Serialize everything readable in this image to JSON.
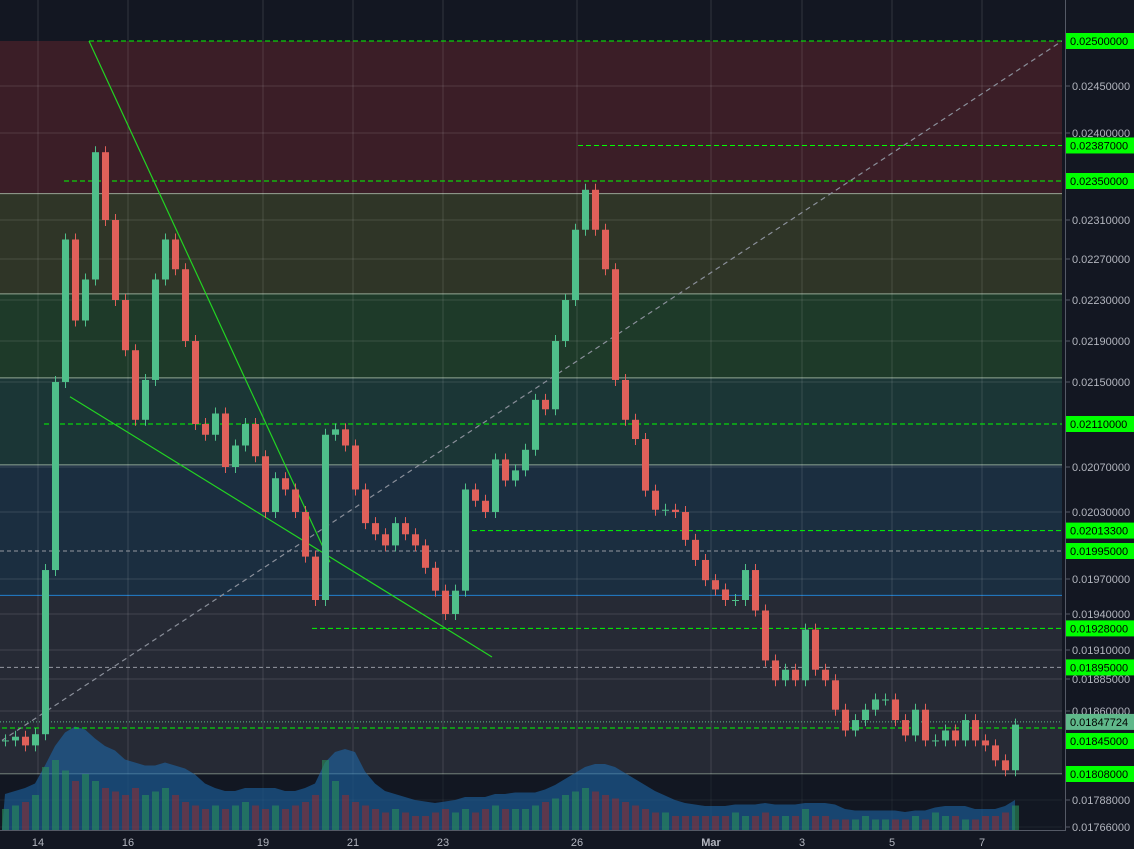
{
  "chart_data": {
    "type": "candlestick",
    "title": "",
    "x_ticks": [
      "14",
      "16",
      "19",
      "21",
      "23",
      "26",
      "Mar",
      "3",
      "5",
      "7"
    ],
    "y_ticks": [
      "0.02450000",
      "0.02400000",
      "0.02310000",
      "0.02270000",
      "0.02230000",
      "0.02190000",
      "0.02150000",
      "0.02070000",
      "0.02030000",
      "0.01970000",
      "0.01940000",
      "0.01910000",
      "0.01885000",
      "0.01860000",
      "0.01788000",
      "0.01766000"
    ],
    "y_tick_values": [
      0.0245,
      0.024,
      0.0231,
      0.0227,
      0.0223,
      0.0219,
      0.0215,
      0.0207,
      0.0203,
      0.0197,
      0.0194,
      0.0191,
      0.01885,
      0.0186,
      0.01788,
      0.01766
    ],
    "price_tags": [
      {
        "label": "0.02500000",
        "value": 0.025
      },
      {
        "label": "0.02387000",
        "value": 0.02387
      },
      {
        "label": "0.02350000",
        "value": 0.0235
      },
      {
        "label": "0.02110000",
        "value": 0.0211
      },
      {
        "label": "0.02013300",
        "value": 0.020133
      },
      {
        "label": "0.01995000",
        "value": 0.01995
      },
      {
        "label": "0.01928000",
        "value": 0.01928
      },
      {
        "label": "0.01895000",
        "value": 0.01895
      },
      {
        "label": "0.01845000",
        "value": 0.01845
      },
      {
        "label": "0.01808000",
        "value": 0.01808
      }
    ],
    "last_price": {
      "label": "0.01847724",
      "value": 0.01847724
    },
    "closes": [
      0.01835,
      0.01838,
      0.01831,
      0.0184,
      0.01978,
      0.0215,
      0.0229,
      0.0221,
      0.0225,
      0.0238,
      0.0231,
      0.0223,
      0.02181,
      0.02114,
      0.02152,
      0.0225,
      0.0229,
      0.0226,
      0.0219,
      0.0211,
      0.021,
      0.0212,
      0.0207,
      0.0209,
      0.0211,
      0.0208,
      0.0203,
      0.0206,
      0.0205,
      0.0203,
      0.0199,
      0.01952,
      0.021,
      0.02105,
      0.0209,
      0.0205,
      0.0202,
      0.0201,
      0.02,
      0.0202,
      0.0201,
      0.02,
      0.0198,
      0.0196,
      0.0194,
      0.0196,
      0.0205,
      0.0204,
      0.0203,
      0.02077,
      0.02058,
      0.02067,
      0.02086,
      0.02133,
      0.02124,
      0.0219,
      0.0223,
      0.023,
      0.02341,
      0.023,
      0.0226,
      0.02152,
      0.02114,
      0.02096,
      0.02049,
      0.02032,
      0.02032,
      0.0203,
      0.02005,
      0.01987,
      0.01969,
      0.01961,
      0.01952,
      0.01952,
      0.01978,
      0.01943,
      0.01901,
      0.01884,
      0.01893,
      0.01884,
      0.01927,
      0.01893,
      0.01884,
      0.01861,
      0.01843,
      0.01852,
      0.01861,
      0.01869,
      0.01869,
      0.01852,
      0.01839,
      0.01861,
      0.01835,
      0.01835,
      0.01843,
      0.01835,
      0.01852,
      0.01835,
      0.01831,
      0.01819,
      0.01811,
      0.01848
    ],
    "volume": [
      0.3,
      0.35,
      0.4,
      0.5,
      0.9,
      1.0,
      0.85,
      0.7,
      0.8,
      0.7,
      0.6,
      0.55,
      0.5,
      0.6,
      0.5,
      0.55,
      0.6,
      0.5,
      0.4,
      0.35,
      0.3,
      0.35,
      0.3,
      0.35,
      0.4,
      0.35,
      0.3,
      0.35,
      0.3,
      0.35,
      0.4,
      0.5,
      1.0,
      0.7,
      0.5,
      0.4,
      0.35,
      0.3,
      0.25,
      0.3,
      0.25,
      0.2,
      0.2,
      0.25,
      0.3,
      0.25,
      0.3,
      0.25,
      0.3,
      0.35,
      0.3,
      0.3,
      0.3,
      0.35,
      0.4,
      0.45,
      0.5,
      0.55,
      0.6,
      0.55,
      0.5,
      0.45,
      0.4,
      0.35,
      0.3,
      0.25,
      0.25,
      0.2,
      0.2,
      0.2,
      0.2,
      0.2,
      0.2,
      0.25,
      0.2,
      0.2,
      0.25,
      0.2,
      0.2,
      0.2,
      0.3,
      0.2,
      0.2,
      0.15,
      0.15,
      0.15,
      0.2,
      0.15,
      0.15,
      0.15,
      0.15,
      0.2,
      0.15,
      0.25,
      0.2,
      0.2,
      0.15,
      0.15,
      0.2,
      0.2,
      0.25,
      0.35
    ],
    "fib_levels": [
      0.025,
      0.02337,
      0.02236,
      0.02154,
      0.02072,
      0.01956,
      0.01808
    ],
    "fib_colors": [
      "#3b1e27",
      "#2f3527",
      "#1e3a29",
      "#1b3636",
      "#1b2e40",
      "#262a35"
    ],
    "fib_line_color": "#b0c4b0",
    "fib_blue_line_color": "#2196f3",
    "green_dashed_levels": [
      {
        "value": 0.025,
        "from_candle": 8.7
      },
      {
        "value": 0.02387,
        "from_candle": 57.6
      },
      {
        "value": 0.0235,
        "from_candle": 6.2
      },
      {
        "value": 0.0211,
        "from_candle": 4.2
      },
      {
        "value": 0.020133,
        "from_candle": 47
      },
      {
        "value": 0.01928,
        "from_candle": 31
      },
      {
        "value": 0.01845,
        "from_candle": 0
      }
    ],
    "grey_dashed_levels": [
      0.01995,
      0.01895
    ],
    "trend_lines": [
      {
        "from": [
          8.7,
          0.025
        ],
        "to": [
          32.8,
          0.01985
        ],
        "color": "#22d422",
        "style": "solid"
      },
      {
        "from": [
          6.8,
          0.02136
        ],
        "to": [
          49,
          0.01904
        ],
        "color": "#22d422",
        "style": "solid"
      },
      {
        "from": [
          0,
          0.01835
        ],
        "to": [
          106,
          0.025
        ],
        "color": "#8a8f9a",
        "style": "dashed"
      }
    ],
    "colors": {
      "up": "#4fbf8a",
      "down": "#e0605a",
      "tag": "#00ff00",
      "last": "#5fb88a",
      "volume_ma": "#1e6bb0"
    }
  }
}
